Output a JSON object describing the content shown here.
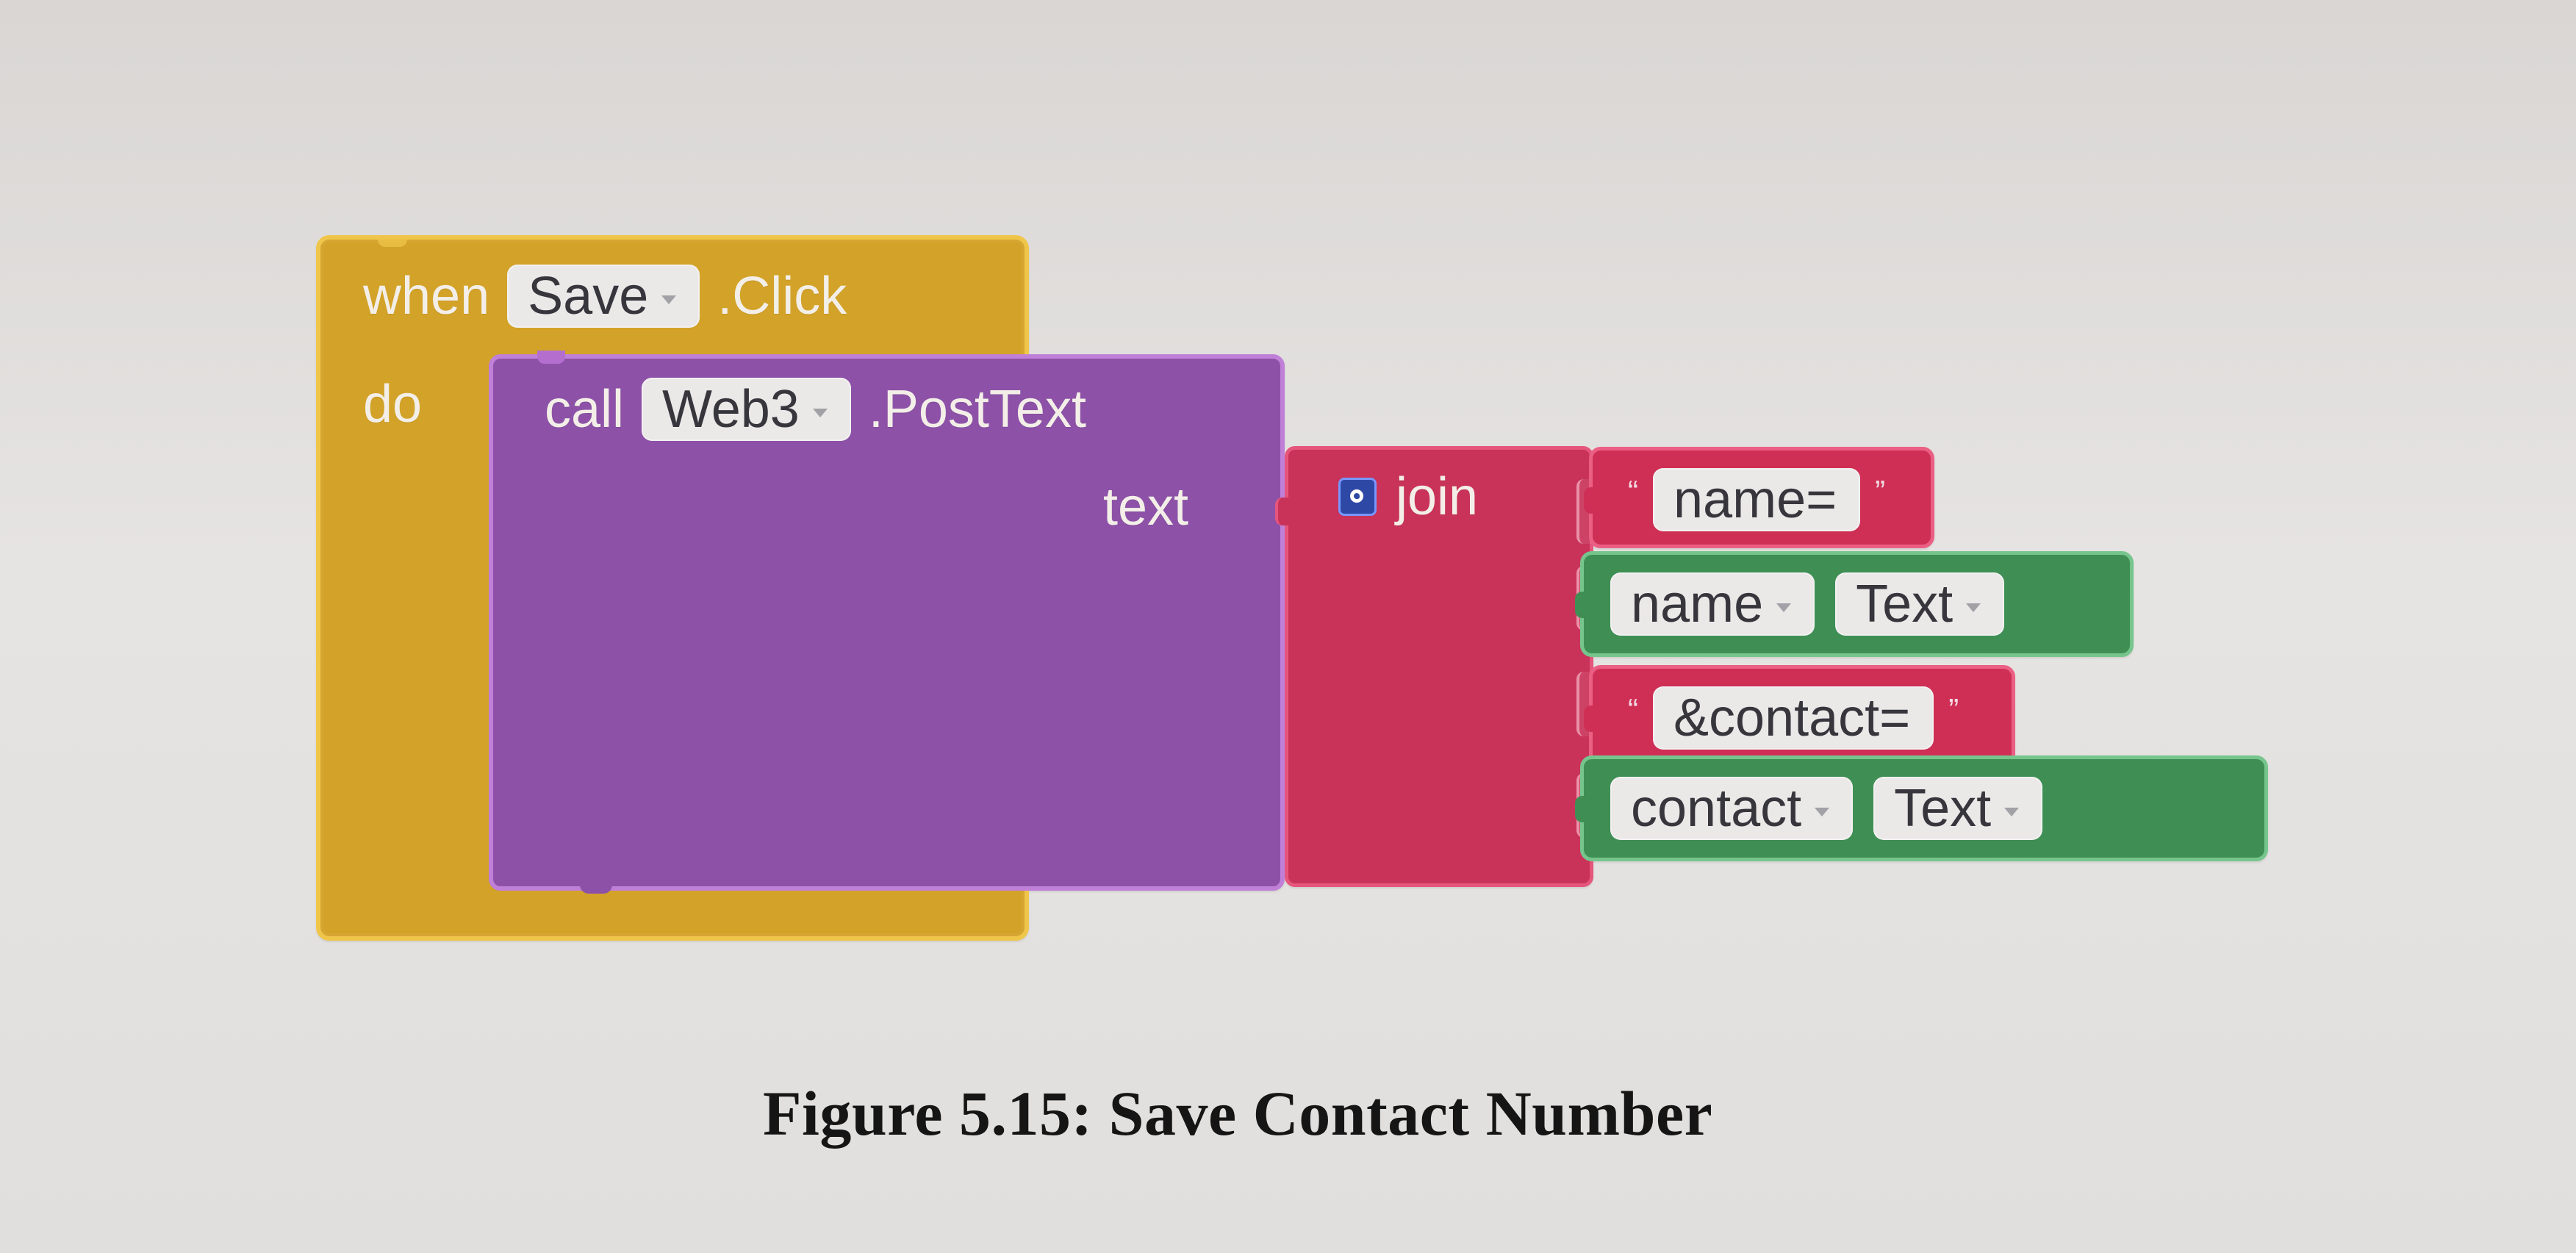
{
  "workspace": {
    "event": {
      "when_label": "when",
      "component": "Save",
      "event_name": ".Click",
      "do_label": "do"
    },
    "procedure": {
      "call_label": "call",
      "component": "Web3",
      "method": ".PostText",
      "argument_label": "text"
    },
    "join": {
      "label": "join"
    },
    "text_blocks": [
      {
        "open_quote": "“",
        "value": "name=",
        "close_quote": "”"
      },
      {
        "open_quote": "“",
        "value": "&contact=",
        "close_quote": "”"
      }
    ],
    "property_blocks": [
      {
        "component": "name",
        "property": "Text"
      },
      {
        "component": "contact",
        "property": "Text"
      }
    ]
  },
  "figure": {
    "caption": "Figure 5.15: Save Contact Number"
  },
  "icons": {
    "join_mutator": "gear-icon",
    "dropdown": "chevron-down-icon"
  },
  "colors": {
    "event_block": "#d3a228",
    "procedure_block": "#8d52a8",
    "join_block": "#c93359",
    "text_block": "#cf2f55",
    "property_block": "#3f8f55",
    "gear_icon": "#2e49a5"
  }
}
